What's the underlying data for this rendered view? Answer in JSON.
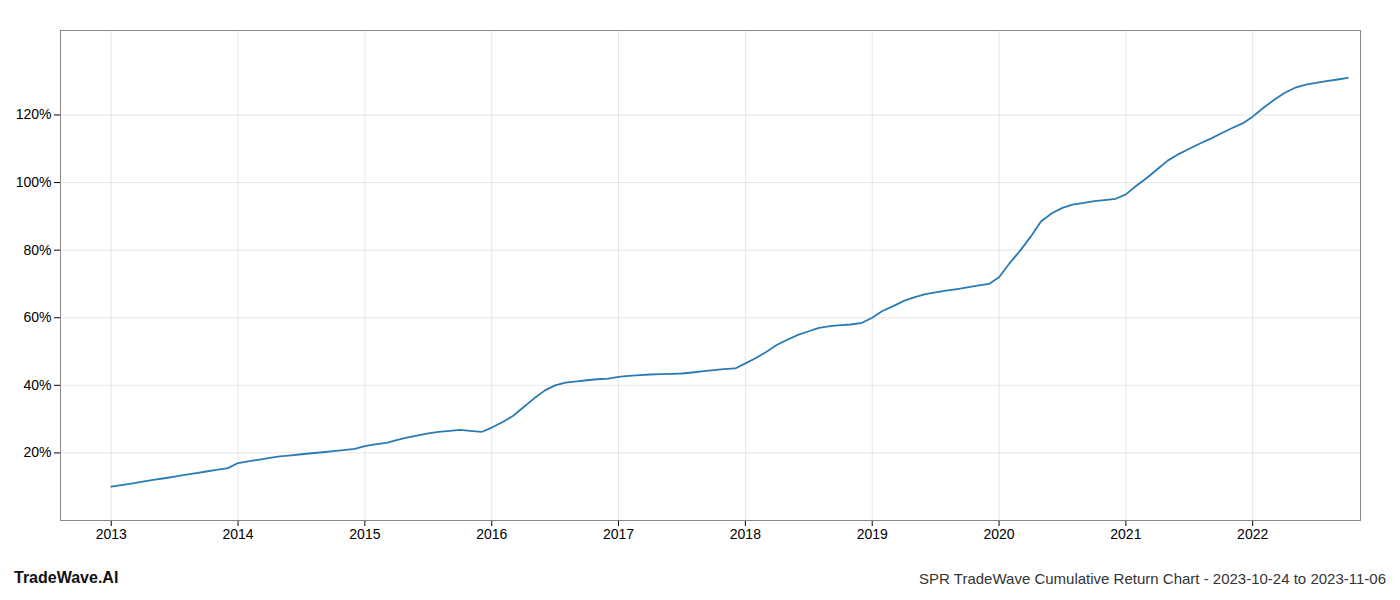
{
  "chart_data": {
    "type": "line",
    "title": "SPR TradeWave Cumulative Return Chart - 2023-10-24 to 2023-11-06",
    "annotations": [
      "TradeWave.AI"
    ],
    "color": "#2a7ab5",
    "grid": true,
    "x": [
      2013.0,
      2013.08,
      2013.17,
      2013.25,
      2013.33,
      2013.42,
      2013.5,
      2013.58,
      2013.67,
      2013.75,
      2013.83,
      2013.92,
      2014.0,
      2014.08,
      2014.17,
      2014.25,
      2014.33,
      2014.42,
      2014.5,
      2014.58,
      2014.67,
      2014.75,
      2014.83,
      2014.92,
      2015.0,
      2015.08,
      2015.17,
      2015.25,
      2015.33,
      2015.42,
      2015.5,
      2015.58,
      2015.67,
      2015.75,
      2015.83,
      2015.92,
      2016.0,
      2016.08,
      2016.17,
      2016.25,
      2016.33,
      2016.42,
      2016.5,
      2016.58,
      2016.67,
      2016.75,
      2016.83,
      2016.92,
      2017.0,
      2017.08,
      2017.17,
      2017.25,
      2017.33,
      2017.42,
      2017.5,
      2017.58,
      2017.67,
      2017.75,
      2017.83,
      2017.92,
      2018.0,
      2018.08,
      2018.17,
      2018.25,
      2018.33,
      2018.42,
      2018.5,
      2018.58,
      2018.67,
      2018.75,
      2018.83,
      2018.92,
      2019.0,
      2019.08,
      2019.17,
      2019.25,
      2019.33,
      2019.42,
      2019.5,
      2019.58,
      2019.67,
      2019.75,
      2019.83,
      2019.92,
      2020.0,
      2020.08,
      2020.17,
      2020.25,
      2020.33,
      2020.42,
      2020.5,
      2020.58,
      2020.67,
      2020.75,
      2020.83,
      2020.92,
      2021.0,
      2021.08,
      2021.17,
      2021.25,
      2021.33,
      2021.42,
      2021.5,
      2021.58,
      2021.67,
      2021.75,
      2021.83,
      2021.92,
      2022.0,
      2022.08,
      2022.17,
      2022.25,
      2022.33,
      2022.42,
      2022.5,
      2022.58,
      2022.67,
      2022.75
    ],
    "values": [
      10.0,
      10.5,
      11.0,
      11.5,
      12.0,
      12.5,
      13.0,
      13.5,
      14.0,
      14.5,
      15.0,
      15.5,
      17.0,
      17.5,
      18.0,
      18.5,
      19.0,
      19.3,
      19.6,
      19.9,
      20.2,
      20.5,
      20.8,
      21.2,
      22.0,
      22.5,
      23.0,
      23.8,
      24.5,
      25.2,
      25.8,
      26.2,
      26.5,
      26.8,
      26.5,
      26.2,
      27.5,
      29.0,
      31.0,
      33.5,
      36.0,
      38.5,
      40.0,
      40.8,
      41.2,
      41.5,
      41.8,
      42.0,
      42.5,
      42.8,
      43.0,
      43.2,
      43.3,
      43.4,
      43.5,
      43.8,
      44.2,
      44.5,
      44.8,
      45.0,
      46.5,
      48.0,
      50.0,
      52.0,
      53.5,
      55.0,
      56.0,
      57.0,
      57.5,
      57.8,
      58.0,
      58.5,
      60.0,
      62.0,
      63.5,
      65.0,
      66.0,
      67.0,
      67.5,
      68.0,
      68.5,
      69.0,
      69.5,
      70.0,
      72.0,
      76.0,
      80.0,
      84.0,
      88.5,
      91.0,
      92.5,
      93.5,
      94.0,
      94.5,
      94.8,
      95.2,
      96.5,
      99.0,
      101.5,
      104.0,
      106.5,
      108.5,
      110.0,
      111.5,
      113.0,
      114.5,
      116.0,
      117.5,
      119.5,
      122.0,
      124.5,
      126.5,
      128.0,
      129.0,
      129.5,
      130.0,
      130.5,
      131.0
    ],
    "xlim": [
      2012.6,
      2022.85
    ],
    "xticks": [
      2013,
      2014,
      2015,
      2016,
      2017,
      2018,
      2019,
      2020,
      2021,
      2022
    ],
    "ylim": [
      0,
      145
    ],
    "yticks": [
      {
        "value": 20,
        "label": "20%"
      },
      {
        "value": 40,
        "label": "40%"
      },
      {
        "value": 60,
        "label": "60%"
      },
      {
        "value": 80,
        "label": "80%"
      },
      {
        "value": 100,
        "label": "100%"
      },
      {
        "value": 120,
        "label": "120%"
      }
    ]
  }
}
